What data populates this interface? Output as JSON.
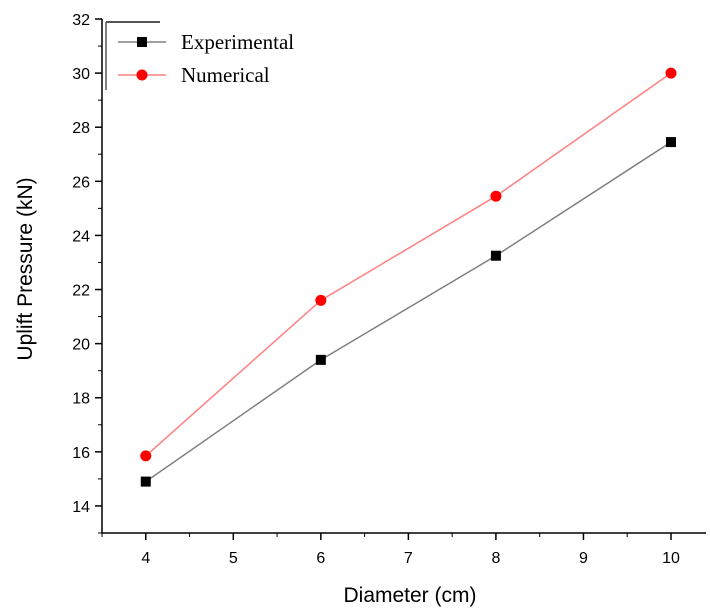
{
  "chart_data": {
    "type": "line",
    "xlabel": "Diameter (cm)",
    "ylabel": "Uplift Pressure (kN)",
    "xlim": [
      3.5,
      10.4
    ],
    "ylim": [
      13,
      32
    ],
    "xticks": [
      4,
      5,
      6,
      7,
      8,
      9,
      10
    ],
    "yticks": [
      14,
      16,
      18,
      20,
      22,
      24,
      26,
      28,
      30,
      32
    ],
    "grid": false,
    "legend_position": "top-left",
    "series": [
      {
        "name": "Experimental",
        "color": "#000000",
        "line_color": "#808080",
        "marker": "square",
        "x": [
          4,
          6,
          8,
          10
        ],
        "y": [
          14.9,
          19.4,
          23.25,
          27.45
        ]
      },
      {
        "name": "Numerical",
        "color": "#ff0000",
        "line_color": "#ff8080",
        "marker": "circle",
        "x": [
          4,
          6,
          8,
          10
        ],
        "y": [
          15.85,
          21.6,
          25.45,
          30.0
        ]
      }
    ]
  }
}
